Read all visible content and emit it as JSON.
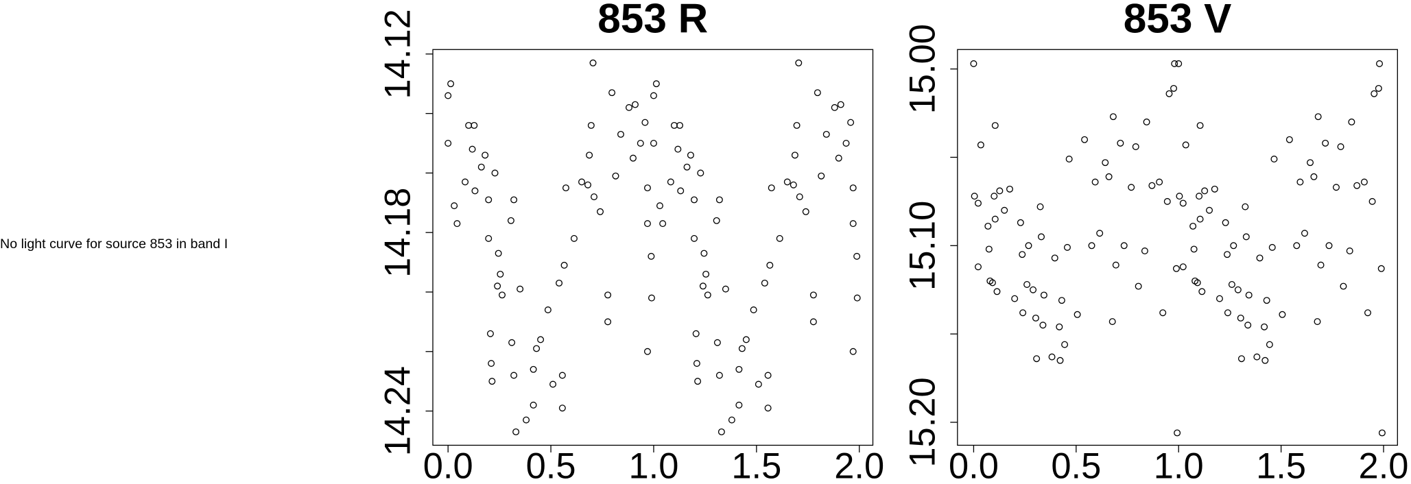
{
  "message": "No light curve for source 853 in band I",
  "chart_data": [
    {
      "type": "scatter",
      "title": "853 R",
      "color": "#000000",
      "xlim": [
        -0.074,
        2.066
      ],
      "ylim": [
        14.2515,
        14.1185
      ],
      "xticks": [
        {
          "value": 0,
          "label": "0.0"
        },
        0.5,
        {
          "value": 1,
          "label": "1.0"
        },
        1.5,
        {
          "value": 2,
          "label": "2.0"
        }
      ],
      "yticks": [
        14.12,
        14.18,
        14.24
      ],
      "yminorticks": [
        14.14,
        14.16,
        14.2,
        14.22
      ],
      "x": [
        0,
        0.013,
        0,
        0.03,
        0.044,
        0.083,
        0.1,
        0.127,
        0.118,
        0.131,
        0.162,
        0.18,
        0.197,
        0.228,
        0.197,
        0.245,
        0.254,
        0.24,
        0.263,
        0.206,
        0.21,
        0.214,
        0.306,
        0.32,
        0.31,
        0.32,
        0.35,
        0.33,
        0.38,
        0.415,
        0.415,
        0.43,
        0.45,
        0.486,
        0.51,
        0.556,
        0.556,
        0.54,
        0.565,
        0.573,
        0.613,
        0.65,
        0.68,
        0.687,
        0.696,
        0.71,
        0.705,
        0.74,
        0.777,
        0.777,
        0.797,
        0.815,
        0.84,
        0.88,
        0.9,
        0.91,
        0.936,
        0.958,
        0.97,
        0.97,
        0.97,
        0.988,
        0.99,
        1,
        1.013,
        1,
        1.03,
        1.044,
        1.083,
        1.1,
        1.127,
        1.118,
        1.131,
        1.162,
        1.18,
        1.197,
        1.228,
        1.197,
        1.245,
        1.254,
        1.24,
        1.263,
        1.206,
        1.21,
        1.214,
        1.306,
        1.32,
        1.31,
        1.32,
        1.35,
        1.33,
        1.38,
        1.415,
        1.415,
        1.43,
        1.45,
        1.486,
        1.51,
        1.556,
        1.556,
        1.54,
        1.565,
        1.573,
        1.613,
        1.65,
        1.68,
        1.687,
        1.696,
        1.71,
        1.705,
        1.74,
        1.777,
        1.777,
        1.797,
        1.815,
        1.84,
        1.88,
        1.9,
        1.91,
        1.936,
        1.958,
        1.97,
        1.97,
        1.97,
        1.988,
        1.99
      ],
      "values": [
        14.134,
        14.13,
        14.15,
        14.171,
        14.177,
        14.163,
        14.144,
        14.144,
        14.152,
        14.166,
        14.158,
        14.154,
        14.169,
        14.16,
        14.182,
        14.187,
        14.194,
        14.198,
        14.201,
        14.214,
        14.224,
        14.23,
        14.176,
        14.169,
        14.217,
        14.228,
        14.199,
        14.247,
        14.243,
        14.238,
        14.226,
        14.219,
        14.216,
        14.206,
        14.231,
        14.228,
        14.239,
        14.197,
        14.191,
        14.165,
        14.182,
        14.163,
        14.164,
        14.154,
        14.144,
        14.168,
        14.123,
        14.173,
        14.201,
        14.21,
        14.133,
        14.161,
        14.147,
        14.138,
        14.155,
        14.137,
        14.15,
        14.143,
        14.165,
        14.177,
        14.22,
        14.188,
        14.202,
        14.134,
        14.13,
        14.15,
        14.171,
        14.177,
        14.163,
        14.144,
        14.144,
        14.152,
        14.166,
        14.158,
        14.154,
        14.169,
        14.16,
        14.182,
        14.187,
        14.194,
        14.198,
        14.201,
        14.214,
        14.224,
        14.23,
        14.176,
        14.169,
        14.217,
        14.228,
        14.199,
        14.247,
        14.243,
        14.238,
        14.226,
        14.219,
        14.216,
        14.206,
        14.231,
        14.228,
        14.239,
        14.197,
        14.191,
        14.165,
        14.182,
        14.163,
        14.164,
        14.154,
        14.144,
        14.168,
        14.123,
        14.173,
        14.201,
        14.21,
        14.133,
        14.161,
        14.147,
        14.138,
        14.155,
        14.137,
        14.15,
        14.143,
        14.165,
        14.177,
        14.22,
        14.188,
        14.202
      ]
    },
    {
      "type": "scatter",
      "title": "853 V",
      "color": "#000000",
      "xlim": [
        -0.079,
        2.068
      ],
      "ylim": [
        15.213,
        14.989
      ],
      "xticks": [
        {
          "value": 0,
          "label": "0.0"
        },
        0.5,
        {
          "value": 1,
          "label": "1.0"
        },
        1.5,
        {
          "value": 2,
          "label": "2.0"
        }
      ],
      "yticks": [
        {
          "value": 15,
          "label": "15.00"
        },
        {
          "value": 15.1,
          "label": "15.10"
        },
        {
          "value": 15.2,
          "label": "15.20"
        }
      ],
      "yminorticks": [
        15.05,
        15.15
      ],
      "x": [
        0,
        0.004,
        0.022,
        0.035,
        0.022,
        0.07,
        0.075,
        0.08,
        0.092,
        0.105,
        0.1,
        0.105,
        0.114,
        0.127,
        0.15,
        0.176,
        0.2,
        0.229,
        0.237,
        0.24,
        0.268,
        0.26,
        0.29,
        0.303,
        0.307,
        0.325,
        0.33,
        0.343,
        0.338,
        0.382,
        0.396,
        0.418,
        0.422,
        0.43,
        0.444,
        0.457,
        0.466,
        0.506,
        0.541,
        0.576,
        0.593,
        0.615,
        0.642,
        0.66,
        0.677,
        0.681,
        0.694,
        0.716,
        0.734,
        0.769,
        0.791,
        0.804,
        0.835,
        0.844,
        0.87,
        0.906,
        0.923,
        0.945,
        0.954,
        0.976,
        0.98,
        0.989,
        0.993,
        1,
        1.004,
        1.022,
        1.035,
        1.022,
        1.07,
        1.075,
        1.08,
        1.092,
        1.105,
        1.1,
        1.105,
        1.114,
        1.127,
        1.15,
        1.176,
        1.2,
        1.229,
        1.237,
        1.24,
        1.268,
        1.26,
        1.29,
        1.303,
        1.307,
        1.325,
        1.33,
        1.343,
        1.338,
        1.382,
        1.396,
        1.418,
        1.422,
        1.43,
        1.444,
        1.457,
        1.466,
        1.506,
        1.541,
        1.576,
        1.593,
        1.615,
        1.642,
        1.66,
        1.677,
        1.681,
        1.694,
        1.716,
        1.734,
        1.769,
        1.791,
        1.804,
        1.835,
        1.844,
        1.87,
        1.906,
        1.923,
        1.945,
        1.954,
        1.976,
        1.98,
        1.989,
        1.993
      ],
      "values": [
        14.997,
        15.072,
        15.076,
        15.043,
        15.112,
        15.089,
        15.102,
        15.12,
        15.121,
        15.032,
        15.072,
        15.085,
        15.126,
        15.069,
        15.08,
        15.068,
        15.13,
        15.087,
        15.105,
        15.138,
        15.1,
        15.122,
        15.125,
        15.141,
        15.164,
        15.078,
        15.095,
        15.128,
        15.145,
        15.163,
        15.107,
        15.146,
        15.165,
        15.131,
        15.156,
        15.101,
        15.051,
        15.139,
        15.04,
        15.1,
        15.064,
        15.093,
        15.053,
        15.061,
        15.143,
        15.027,
        15.111,
        15.042,
        15.1,
        15.067,
        15.044,
        15.123,
        15.103,
        15.03,
        15.066,
        15.064,
        15.138,
        15.075,
        15.014,
        15.011,
        14.997,
        15.113,
        15.206,
        14.997,
        15.072,
        15.076,
        15.043,
        15.112,
        15.089,
        15.102,
        15.12,
        15.121,
        15.032,
        15.072,
        15.085,
        15.126,
        15.069,
        15.08,
        15.068,
        15.13,
        15.087,
        15.105,
        15.138,
        15.1,
        15.122,
        15.125,
        15.141,
        15.164,
        15.078,
        15.095,
        15.128,
        15.145,
        15.163,
        15.107,
        15.146,
        15.165,
        15.131,
        15.156,
        15.101,
        15.051,
        15.139,
        15.04,
        15.1,
        15.064,
        15.093,
        15.053,
        15.061,
        15.143,
        15.027,
        15.111,
        15.042,
        15.1,
        15.067,
        15.044,
        15.123,
        15.103,
        15.03,
        15.066,
        15.064,
        15.138,
        15.075,
        15.014,
        15.011,
        14.997,
        15.113,
        15.206
      ]
    }
  ]
}
